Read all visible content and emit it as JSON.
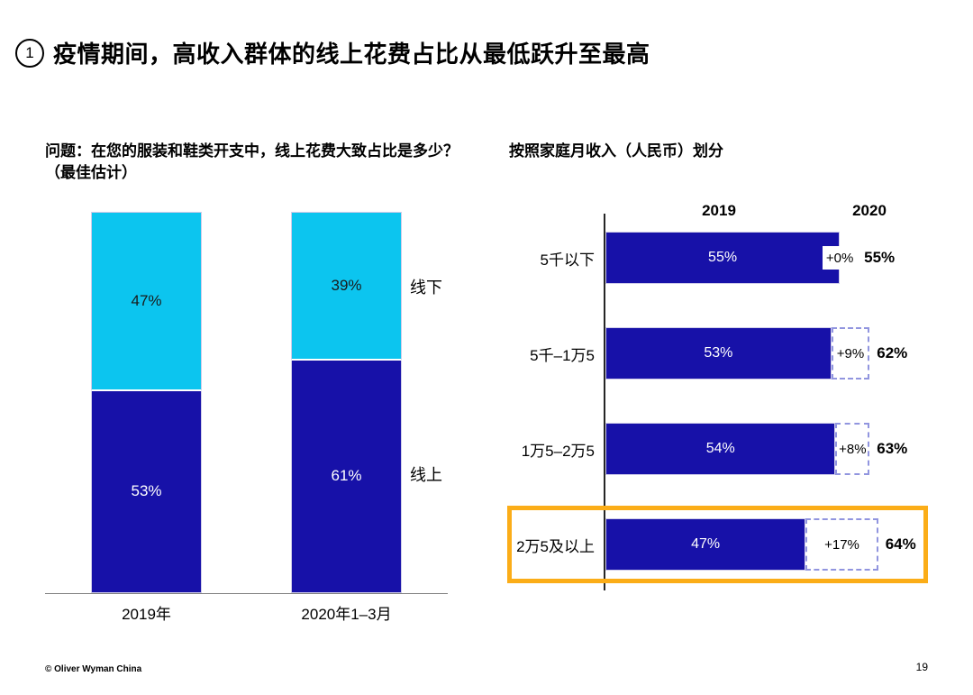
{
  "page": {
    "title_badge": "1",
    "title": "疫情期间，高收入群体的线上花费占比从最低跃升至最高",
    "footer_left": "© Oliver Wyman China",
    "page_number": "19"
  },
  "colors": {
    "dark_blue": "#1711a8",
    "cyan": "#0cc5ef",
    "dashed_border": "#9195df",
    "highlight_orange": "#fbad18"
  },
  "chart_data": [
    {
      "type": "bar",
      "subtype": "stacked-column",
      "title": "问题：在您的服装和鞋类开支中，线上花费大致占比是多少？（最佳估计）",
      "categories": [
        "2019年",
        "2020年1–3月"
      ],
      "ylim": [
        0,
        100
      ],
      "series": [
        {
          "name": "线下",
          "color": "#0cc5ef",
          "values": [
            47,
            39
          ],
          "labels": [
            "47%",
            "39%"
          ]
        },
        {
          "name": "线上",
          "color": "#1711a8",
          "values": [
            53,
            61
          ],
          "labels": [
            "53%",
            "61%"
          ]
        }
      ]
    },
    {
      "type": "bar",
      "subtype": "horizontal-dumbbell",
      "title": "按照家庭月收入（人民币）划分",
      "col_headers": [
        "2019",
        "2020"
      ],
      "xlim": [
        0,
        70
      ],
      "rows": [
        {
          "label": "5千以下",
          "value_2019": 55,
          "label_2019": "55%",
          "delta": 0,
          "delta_label": "+0%",
          "value_2020": 55,
          "label_2020": "55%",
          "highlighted": false
        },
        {
          "label": "5千–1万5",
          "value_2019": 53,
          "label_2019": "53%",
          "delta": 9,
          "delta_label": "+9%",
          "value_2020": 62,
          "label_2020": "62%",
          "highlighted": false
        },
        {
          "label": "1万5–2万5",
          "value_2019": 54,
          "label_2019": "54%",
          "delta": 8,
          "delta_label": "+8%",
          "value_2020": 63,
          "label_2020": "63%",
          "highlighted": false
        },
        {
          "label": "2万5及以上",
          "value_2019": 47,
          "label_2019": "47%",
          "delta": 17,
          "delta_label": "+17%",
          "value_2020": 64,
          "label_2020": "64%",
          "highlighted": true
        }
      ]
    }
  ]
}
